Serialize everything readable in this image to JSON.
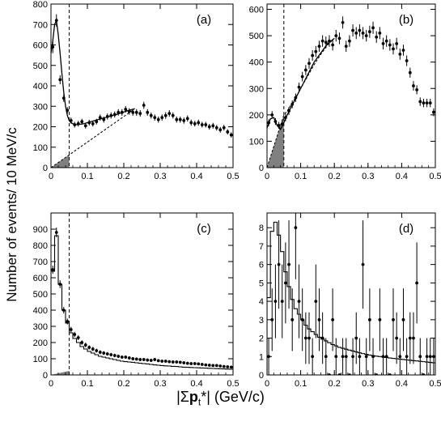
{
  "figure": {
    "ylabel": "Number of events/ 10 MeV/c",
    "xlabel_prefix": "|Σ",
    "xlabel_bold": "p",
    "xlabel_sub": "t",
    "xlabel_suffix": "*|  (GeV/c)"
  },
  "chart_data": [
    {
      "panel": "(a)",
      "type": "scatter",
      "xlim": [
        0,
        0.5
      ],
      "ylim": [
        0,
        800
      ],
      "xticks": [
        0,
        0.1,
        0.2,
        0.3,
        0.4,
        0.5
      ],
      "xtick_labels": [
        "0",
        "0.1",
        "0.2",
        "0.3",
        "0.4",
        "0.5"
      ],
      "yticks": [
        0,
        100,
        200,
        300,
        400,
        500,
        600,
        700,
        800
      ],
      "ytick_labels": [
        "0",
        "100",
        "200",
        "300",
        "400",
        "500",
        "600",
        "700",
        "800"
      ],
      "cut_line": 0.05,
      "points": {
        "x": [
          0.005,
          0.015,
          0.025,
          0.035,
          0.045,
          0.055,
          0.065,
          0.075,
          0.085,
          0.095,
          0.105,
          0.115,
          0.125,
          0.135,
          0.145,
          0.155,
          0.165,
          0.175,
          0.185,
          0.195,
          0.205,
          0.215,
          0.225,
          0.235,
          0.245,
          0.255,
          0.265,
          0.275,
          0.285,
          0.295,
          0.305,
          0.315,
          0.325,
          0.335,
          0.345,
          0.355,
          0.365,
          0.375,
          0.385,
          0.395,
          0.405,
          0.415,
          0.425,
          0.435,
          0.445,
          0.455,
          0.465,
          0.475,
          0.485,
          0.495
        ],
        "y": [
          590,
          720,
          430,
          340,
          280,
          230,
          210,
          215,
          225,
          205,
          220,
          215,
          225,
          245,
          235,
          250,
          255,
          260,
          270,
          270,
          285,
          275,
          270,
          270,
          265,
          305,
          270,
          255,
          245,
          235,
          245,
          255,
          265,
          255,
          235,
          235,
          230,
          240,
          220,
          215,
          220,
          210,
          210,
          200,
          205,
          195,
          185,
          195,
          175,
          160
        ],
        "err": [
          30,
          30,
          22,
          18,
          16,
          15,
          14,
          14,
          14,
          14,
          14,
          14,
          14,
          15,
          15,
          15,
          15,
          15,
          16,
          16,
          16,
          16,
          16,
          16,
          16,
          17,
          16,
          15,
          15,
          15,
          15,
          16,
          16,
          15,
          15,
          15,
          15,
          15,
          15,
          14,
          15,
          14,
          14,
          14,
          14,
          14,
          14,
          14,
          13,
          13
        ]
      },
      "fit_curve": {
        "x": [
          0,
          0.005,
          0.01,
          0.015,
          0.02,
          0.025,
          0.03,
          0.035,
          0.04,
          0.045,
          0.05,
          0.055,
          0.06,
          0.07,
          0.08,
          0.09,
          0.1,
          0.12,
          0.14,
          0.16,
          0.18,
          0.2,
          0.21,
          0.22,
          0.23
        ],
        "y": [
          560,
          620,
          700,
          720,
          650,
          560,
          460,
          370,
          300,
          255,
          230,
          220,
          215,
          210,
          212,
          215,
          220,
          230,
          240,
          250,
          260,
          272,
          278,
          283,
          288
        ]
      },
      "background_curve": {
        "x": [
          0,
          0.02,
          0.04,
          0.05,
          0.06,
          0.08,
          0.1,
          0.12,
          0.14,
          0.16,
          0.18,
          0.2,
          0.22,
          0.23
        ],
        "y": [
          0,
          25,
          50,
          62,
          75,
          100,
          125,
          150,
          175,
          200,
          225,
          250,
          275,
          288
        ]
      },
      "shaded_region": {
        "x": [
          0,
          0.05
        ],
        "y": [
          0,
          62
        ]
      }
    },
    {
      "panel": "(b)",
      "type": "scatter",
      "xlim": [
        0,
        0.5
      ],
      "ylim": [
        0,
        620
      ],
      "xticks": [
        0,
        0.1,
        0.2,
        0.3,
        0.4,
        0.5
      ],
      "xtick_labels": [
        "0",
        "0.1",
        "0.2",
        "0.3",
        "0.4",
        "0.5"
      ],
      "yticks": [
        0,
        100,
        200,
        300,
        400,
        500,
        600
      ],
      "ytick_labels": [
        "0",
        "100",
        "200",
        "300",
        "400",
        "500",
        "600"
      ],
      "cut_line": 0.05,
      "points": {
        "x": [
          0.005,
          0.015,
          0.025,
          0.035,
          0.045,
          0.055,
          0.065,
          0.075,
          0.085,
          0.095,
          0.105,
          0.115,
          0.125,
          0.135,
          0.145,
          0.155,
          0.165,
          0.175,
          0.185,
          0.195,
          0.205,
          0.215,
          0.225,
          0.235,
          0.245,
          0.255,
          0.265,
          0.275,
          0.285,
          0.295,
          0.305,
          0.315,
          0.325,
          0.335,
          0.345,
          0.355,
          0.365,
          0.375,
          0.385,
          0.395,
          0.405,
          0.415,
          0.425,
          0.435,
          0.445,
          0.455,
          0.465,
          0.475,
          0.485,
          0.495
        ],
        "y": [
          170,
          200,
          175,
          160,
          165,
          190,
          215,
          240,
          265,
          305,
          345,
          370,
          395,
          425,
          440,
          460,
          480,
          475,
          480,
          465,
          500,
          490,
          550,
          460,
          480,
          520,
          510,
          520,
          510,
          500,
          515,
          530,
          495,
          510,
          470,
          480,
          465,
          450,
          470,
          430,
          445,
          405,
          360,
          310,
          295,
          250,
          245,
          245,
          245,
          210
        ],
        "err": [
          13,
          14,
          13,
          13,
          13,
          14,
          15,
          15,
          16,
          17,
          18,
          19,
          20,
          20,
          21,
          21,
          22,
          22,
          22,
          21,
          22,
          22,
          23,
          21,
          22,
          23,
          23,
          23,
          23,
          22,
          23,
          23,
          22,
          23,
          22,
          22,
          22,
          21,
          22,
          21,
          21,
          20,
          19,
          18,
          17,
          16,
          16,
          16,
          16,
          15
        ]
      },
      "fit_curve": {
        "x": [
          0,
          0.01,
          0.02,
          0.03,
          0.04,
          0.05,
          0.06,
          0.08,
          0.1,
          0.12,
          0.14,
          0.16,
          0.18,
          0.2
        ],
        "y": [
          150,
          185,
          190,
          160,
          145,
          170,
          200,
          250,
          300,
          350,
          400,
          435,
          470,
          490
        ]
      },
      "background_curve": {
        "x": [
          0,
          0.02,
          0.04,
          0.05,
          0.06,
          0.08,
          0.1,
          0.12,
          0.14,
          0.16,
          0.18,
          0.2
        ],
        "y": [
          0,
          80,
          160,
          200,
          215,
          255,
          300,
          345,
          390,
          430,
          465,
          490
        ]
      },
      "shaded_region": {
        "x": [
          0,
          0.05
        ],
        "y": [
          0,
          200
        ]
      }
    },
    {
      "panel": "(c)",
      "type": "scatter",
      "xlim": [
        0,
        0.5
      ],
      "ylim": [
        0,
        1000
      ],
      "xticks": [
        0,
        0.1,
        0.2,
        0.3,
        0.4,
        0.5
      ],
      "xtick_labels": [
        "0",
        "0.1",
        "0.2",
        "0.3",
        "0.4",
        "0.5"
      ],
      "yticks": [
        0,
        100,
        200,
        300,
        400,
        500,
        600,
        700,
        800,
        900
      ],
      "ytick_labels": [
        "0",
        "100",
        "200",
        "300",
        "400",
        "500",
        "600",
        "700",
        "800",
        "900"
      ],
      "cut_line": 0.05,
      "points": {
        "x": [
          0.005,
          0.015,
          0.025,
          0.035,
          0.045,
          0.055,
          0.065,
          0.075,
          0.085,
          0.095,
          0.105,
          0.115,
          0.125,
          0.135,
          0.145,
          0.155,
          0.165,
          0.175,
          0.185,
          0.195,
          0.205,
          0.215,
          0.225,
          0.235,
          0.245,
          0.255,
          0.265,
          0.275,
          0.285,
          0.295,
          0.305,
          0.315,
          0.325,
          0.335,
          0.345,
          0.355,
          0.365,
          0.375,
          0.385,
          0.395,
          0.405,
          0.415,
          0.425,
          0.435,
          0.445,
          0.455,
          0.465,
          0.475,
          0.485,
          0.495
        ],
        "y": [
          650,
          880,
          560,
          400,
          330,
          280,
          250,
          230,
          200,
          185,
          170,
          160,
          150,
          140,
          135,
          130,
          125,
          120,
          115,
          110,
          110,
          105,
          100,
          98,
          95,
          95,
          92,
          90,
          95,
          88,
          85,
          85,
          82,
          80,
          80,
          78,
          75,
          72,
          70,
          70,
          68,
          65,
          62,
          60,
          58,
          58,
          55,
          52,
          50,
          48
        ],
        "err": [
          25,
          30,
          24,
          20,
          18,
          17,
          16,
          15,
          14,
          14,
          13,
          13,
          12,
          12,
          12,
          11,
          11,
          11,
          11,
          10,
          10,
          10,
          10,
          10,
          10,
          10,
          10,
          9,
          10,
          9,
          9,
          9,
          9,
          9,
          9,
          9,
          9,
          9,
          8,
          8,
          8,
          8,
          8,
          8,
          8,
          8,
          7,
          7,
          7,
          7
        ]
      },
      "histogram": {
        "edges": [
          0,
          0.01,
          0.02,
          0.03,
          0.04,
          0.05,
          0.06,
          0.07,
          0.08,
          0.09,
          0.1,
          0.11,
          0.12,
          0.13,
          0.14,
          0.15,
          0.16,
          0.17,
          0.18,
          0.19,
          0.2,
          0.21,
          0.22,
          0.23,
          0.24,
          0.25,
          0.26,
          0.27,
          0.28,
          0.29,
          0.3,
          0.31,
          0.32,
          0.33,
          0.34,
          0.35,
          0.36,
          0.37,
          0.38,
          0.39,
          0.4,
          0.41,
          0.42,
          0.43,
          0.44,
          0.45,
          0.46,
          0.47,
          0.48,
          0.49,
          0.5
        ],
        "y": [
          640,
          860,
          560,
          400,
          320,
          260,
          225,
          200,
          175,
          160,
          145,
          135,
          125,
          115,
          110,
          105,
          100,
          95,
          90,
          85,
          82,
          80,
          78,
          75,
          72,
          70,
          68,
          65,
          62,
          60,
          58,
          56,
          55,
          53,
          52,
          50,
          48,
          47,
          46,
          45,
          44,
          43,
          42,
          41,
          40,
          39,
          38,
          37,
          36,
          35
        ]
      },
      "shaded_region": {
        "x": [
          0,
          0.05
        ],
        "y": [
          0,
          25
        ]
      }
    },
    {
      "panel": "(d)",
      "type": "scatter",
      "xlim": [
        0,
        0.5
      ],
      "ylim": [
        0,
        8.8
      ],
      "xticks": [
        0,
        0.1,
        0.2,
        0.3,
        0.4,
        0.5
      ],
      "xtick_labels": [
        "0",
        "0.1",
        "0.2",
        "0.3",
        "0.4",
        "0.5"
      ],
      "yticks": [
        0,
        1,
        2,
        3,
        4,
        5,
        6,
        7,
        8
      ],
      "ytick_labels": [
        "0",
        "1",
        "2",
        "3",
        "4",
        "5",
        "6",
        "7",
        "8"
      ],
      "points": {
        "x": [
          0.005,
          0.015,
          0.025,
          0.035,
          0.045,
          0.055,
          0.065,
          0.075,
          0.085,
          0.095,
          0.105,
          0.115,
          0.125,
          0.135,
          0.145,
          0.155,
          0.165,
          0.175,
          0.185,
          0.195,
          0.205,
          0.215,
          0.225,
          0.235,
          0.245,
          0.255,
          0.265,
          0.275,
          0.285,
          0.295,
          0.305,
          0.315,
          0.325,
          0.335,
          0.345,
          0.355,
          0.365,
          0.375,
          0.385,
          0.395,
          0.405,
          0.415,
          0.425,
          0.435,
          0.445,
          0.455,
          0.465,
          0.475,
          0.485,
          0.495
        ],
        "y": [
          1,
          3,
          4,
          6,
          4,
          5,
          6,
          3,
          8,
          4,
          3,
          2,
          2,
          1,
          4,
          3,
          2,
          1,
          0,
          3,
          1,
          0,
          1,
          1,
          0,
          1,
          2,
          1,
          6,
          1,
          3,
          1,
          0,
          3,
          1,
          1,
          0,
          3,
          2,
          1,
          3,
          1,
          2,
          2,
          5,
          1,
          0,
          1,
          1,
          1
        ],
        "err": [
          1,
          1.7,
          2,
          2.4,
          2,
          2.2,
          2.4,
          1.7,
          2.8,
          2,
          1.7,
          1.4,
          1.4,
          1,
          2,
          1.7,
          1.4,
          1,
          0,
          1.7,
          1,
          0,
          1,
          1,
          0,
          1,
          1.4,
          1,
          2.4,
          1,
          1.7,
          1,
          0,
          1.7,
          1,
          1,
          0,
          1.7,
          1.4,
          1,
          1.7,
          1,
          1.4,
          1.4,
          2.2,
          1,
          0,
          1,
          1,
          1
        ]
      },
      "histogram": {
        "edges": [
          0,
          0.01,
          0.02,
          0.03,
          0.04,
          0.05,
          0.06,
          0.07,
          0.08,
          0.09,
          0.1,
          0.11,
          0.12,
          0.13,
          0.14,
          0.15,
          0.16,
          0.17,
          0.18,
          0.19,
          0.2,
          0.21,
          0.22,
          0.23,
          0.24,
          0.25,
          0.26,
          0.27,
          0.28,
          0.29,
          0.3,
          0.31,
          0.32,
          0.33,
          0.34,
          0.35,
          0.36,
          0.37,
          0.38,
          0.39,
          0.4,
          0.41,
          0.42,
          0.43,
          0.44,
          0.45,
          0.46,
          0.47,
          0.48,
          0.49,
          0.5
        ],
        "y": [
          4.2,
          7.8,
          8.3,
          7.6,
          6.7,
          5.6,
          4.8,
          4.1,
          3.6,
          3.3,
          3.0,
          2.7,
          2.5,
          2.35,
          2.2,
          2.05,
          1.95,
          1.85,
          1.75,
          1.65,
          1.58,
          1.5,
          1.45,
          1.4,
          1.35,
          1.3,
          1.25,
          1.2,
          1.16,
          1.12,
          1.08,
          1.05,
          1.02,
          1.0,
          0.98,
          0.95,
          0.92,
          0.9,
          0.88,
          0.86,
          0.84,
          0.82,
          0.8,
          0.78,
          0.76,
          0.74,
          0.72,
          0.7,
          0.68,
          0.66
        ]
      }
    }
  ]
}
